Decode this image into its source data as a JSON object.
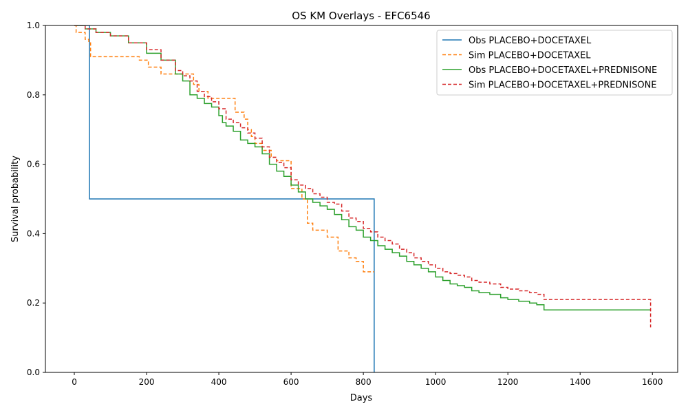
{
  "chart_data": {
    "type": "line",
    "title": "OS KM Overlays - EFC6546",
    "xlabel": "Days",
    "ylabel": "Survival probability",
    "xlim": [
      -80,
      1670
    ],
    "ylim": [
      0,
      1
    ],
    "x_ticks": [
      0,
      200,
      400,
      600,
      800,
      1000,
      1200,
      1400,
      1600
    ],
    "y_ticks": [
      0.0,
      0.2,
      0.4,
      0.6,
      0.8,
      1.0
    ],
    "x_tick_labels": [
      "0",
      "200",
      "400",
      "600",
      "800",
      "1000",
      "1200",
      "1400",
      "1600"
    ],
    "y_tick_labels": [
      "0.0",
      "0.2",
      "0.4",
      "0.6",
      "0.8",
      "1.0"
    ],
    "grid": false,
    "legend_position": "top-right",
    "series": [
      {
        "name": "Obs PLACEBO+DOCETAXEL",
        "color": "#1f77b4",
        "style": "solid",
        "x": [
          0,
          42,
          42,
          830,
          830
        ],
        "y": [
          1.0,
          1.0,
          0.5,
          0.5,
          0.0
        ]
      },
      {
        "name": "Sim PLACEBO+DOCETAXEL",
        "color": "#ff7f0e",
        "style": "dashed",
        "x": [
          0,
          5,
          30,
          40,
          45,
          180,
          205,
          240,
          330,
          345,
          370,
          445,
          470,
          480,
          490,
          500,
          520,
          545,
          560,
          600,
          610,
          630,
          645,
          660,
          700,
          730,
          760,
          780,
          800,
          830
        ],
        "y": [
          1.0,
          0.98,
          0.96,
          0.95,
          0.91,
          0.9,
          0.88,
          0.86,
          0.83,
          0.81,
          0.79,
          0.75,
          0.73,
          0.7,
          0.68,
          0.66,
          0.64,
          0.62,
          0.61,
          0.53,
          0.53,
          0.5,
          0.43,
          0.41,
          0.39,
          0.35,
          0.33,
          0.32,
          0.29,
          0.29
        ]
      },
      {
        "name": "Obs PLACEBO+DOCETAXEL+PREDNISONE",
        "color": "#2ca02c",
        "style": "solid",
        "x": [
          0,
          30,
          60,
          100,
          150,
          200,
          240,
          280,
          300,
          320,
          340,
          360,
          380,
          400,
          410,
          420,
          440,
          460,
          480,
          500,
          520,
          540,
          560,
          580,
          600,
          620,
          640,
          660,
          680,
          700,
          720,
          740,
          760,
          780,
          800,
          820,
          840,
          860,
          880,
          900,
          920,
          940,
          960,
          980,
          1000,
          1020,
          1040,
          1060,
          1080,
          1100,
          1120,
          1150,
          1180,
          1200,
          1230,
          1260,
          1280,
          1300,
          1400,
          1500,
          1595
        ],
        "y": [
          1.0,
          0.99,
          0.98,
          0.97,
          0.95,
          0.92,
          0.9,
          0.86,
          0.84,
          0.8,
          0.79,
          0.775,
          0.765,
          0.74,
          0.72,
          0.71,
          0.695,
          0.67,
          0.66,
          0.65,
          0.63,
          0.6,
          0.58,
          0.565,
          0.54,
          0.52,
          0.5,
          0.49,
          0.48,
          0.47,
          0.455,
          0.44,
          0.42,
          0.41,
          0.39,
          0.38,
          0.365,
          0.355,
          0.345,
          0.335,
          0.32,
          0.31,
          0.3,
          0.29,
          0.275,
          0.265,
          0.255,
          0.25,
          0.245,
          0.235,
          0.23,
          0.225,
          0.215,
          0.21,
          0.205,
          0.2,
          0.195,
          0.18,
          0.18,
          0.18,
          0.18
        ]
      },
      {
        "name": "Sim PLACEBO+DOCETAXEL+PREDNISONE",
        "color": "#d62728",
        "style": "dashed",
        "x": [
          0,
          30,
          60,
          100,
          150,
          200,
          240,
          280,
          300,
          320,
          340,
          360,
          380,
          400,
          420,
          440,
          460,
          480,
          500,
          520,
          540,
          560,
          580,
          600,
          620,
          640,
          660,
          680,
          700,
          720,
          740,
          760,
          780,
          800,
          820,
          840,
          860,
          880,
          900,
          920,
          940,
          960,
          980,
          1000,
          1020,
          1040,
          1060,
          1080,
          1100,
          1120,
          1150,
          1180,
          1200,
          1230,
          1260,
          1280,
          1300,
          1400,
          1500,
          1595,
          1595
        ],
        "y": [
          1.0,
          0.99,
          0.98,
          0.97,
          0.95,
          0.93,
          0.9,
          0.87,
          0.855,
          0.84,
          0.81,
          0.795,
          0.78,
          0.76,
          0.73,
          0.72,
          0.705,
          0.69,
          0.675,
          0.65,
          0.62,
          0.605,
          0.59,
          0.555,
          0.54,
          0.53,
          0.515,
          0.505,
          0.49,
          0.485,
          0.465,
          0.445,
          0.435,
          0.415,
          0.405,
          0.39,
          0.38,
          0.37,
          0.355,
          0.345,
          0.33,
          0.32,
          0.31,
          0.3,
          0.29,
          0.285,
          0.28,
          0.275,
          0.265,
          0.26,
          0.255,
          0.245,
          0.24,
          0.235,
          0.23,
          0.225,
          0.21,
          0.21,
          0.21,
          0.21,
          0.13
        ]
      }
    ]
  }
}
